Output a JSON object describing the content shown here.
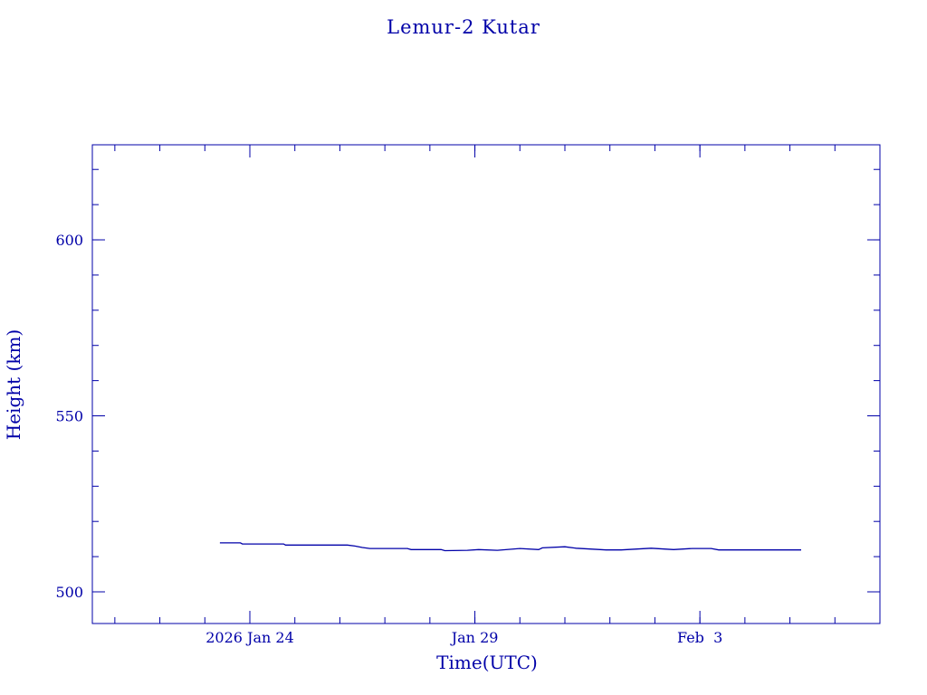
{
  "chart_data": {
    "type": "line",
    "title": "Lemur-2 Kutar",
    "xlabel": "Time(UTC)",
    "ylabel": "Height (km)",
    "x_axis": {
      "type": "time",
      "range": [
        "2026-01-20T12:00",
        "2026-02-07T00:00"
      ],
      "major_ticks": [
        {
          "date": "2026-01-24",
          "label": "2026 Jan 24"
        },
        {
          "date": "2026-01-29",
          "label": "Jan 29"
        },
        {
          "date": "2026-02-03",
          "label": "Feb  3"
        }
      ],
      "minor_tick_days": 1
    },
    "y_axis": {
      "range": [
        491,
        627
      ],
      "major_ticks": [
        500,
        550,
        600
      ],
      "minor_tick_step": 10
    },
    "grid": false,
    "legend": "none",
    "color": "#0000a8",
    "series": [
      {
        "points": [
          {
            "x": "2026-01-23T08:00",
            "y": 513.9
          },
          {
            "x": "2026-01-23T19:00",
            "y": 513.9
          },
          {
            "x": "2026-01-23T20:00",
            "y": 513.6
          },
          {
            "x": "2026-01-24T18:00",
            "y": 513.6
          },
          {
            "x": "2026-01-24T19:00",
            "y": 513.3
          },
          {
            "x": "2026-01-25T12:00",
            "y": 513.3
          },
          {
            "x": "2026-01-26T04:00",
            "y": 513.3
          },
          {
            "x": "2026-01-26T08:00",
            "y": 513.0
          },
          {
            "x": "2026-01-26T12:00",
            "y": 512.6
          },
          {
            "x": "2026-01-26T16:00",
            "y": 512.3
          },
          {
            "x": "2026-01-27T12:00",
            "y": 512.3
          },
          {
            "x": "2026-01-27T14:00",
            "y": 512.0
          },
          {
            "x": "2026-01-28T06:00",
            "y": 512.0
          },
          {
            "x": "2026-01-28T08:00",
            "y": 511.7
          },
          {
            "x": "2026-01-28T20:00",
            "y": 511.8
          },
          {
            "x": "2026-01-29T02:00",
            "y": 512.0
          },
          {
            "x": "2026-01-29T12:00",
            "y": 511.8
          },
          {
            "x": "2026-01-30T00:00",
            "y": 512.3
          },
          {
            "x": "2026-01-30T10:00",
            "y": 512.0
          },
          {
            "x": "2026-01-30T12:00",
            "y": 512.5
          },
          {
            "x": "2026-01-31T00:00",
            "y": 512.8
          },
          {
            "x": "2026-01-31T06:00",
            "y": 512.4
          },
          {
            "x": "2026-01-31T22:00",
            "y": 511.9
          },
          {
            "x": "2026-02-01T06:00",
            "y": 511.9
          },
          {
            "x": "2026-02-01T22:00",
            "y": 512.4
          },
          {
            "x": "2026-02-02T10:00",
            "y": 512.0
          },
          {
            "x": "2026-02-02T20:00",
            "y": 512.3
          },
          {
            "x": "2026-02-03T06:00",
            "y": 512.3
          },
          {
            "x": "2026-02-03T10:00",
            "y": 511.9
          },
          {
            "x": "2026-02-04T06:00",
            "y": 511.9
          },
          {
            "x": "2026-02-04T22:00",
            "y": 511.9
          },
          {
            "x": "2026-02-05T06:00",
            "y": 511.9
          }
        ]
      }
    ]
  }
}
